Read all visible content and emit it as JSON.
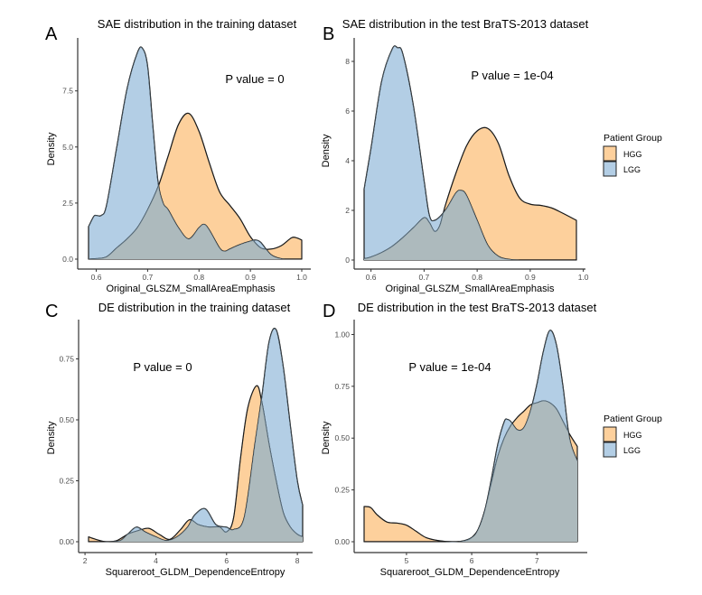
{
  "legend": {
    "title": "Patient Group",
    "items": [
      {
        "label": "HGG",
        "color": "#FDD09C"
      },
      {
        "label": "LGG",
        "color": "#B3CEE5"
      }
    ]
  },
  "colors": {
    "HGG": "#FDD09C",
    "LGG": "#B3CEE5",
    "overlap": "#ADBABD",
    "outline": "#1a1a1a",
    "axis": "#333333"
  },
  "chart_data": [
    {
      "panel": "A",
      "type": "area",
      "title": "SAE distribution in the training dataset",
      "xlabel": "Original_GLSZM_SmallAreaEmphasis",
      "ylabel": "Density",
      "annotation": "P value = 0",
      "xlim": [
        0.585,
        1.0
      ],
      "ylim": [
        0,
        9.5
      ],
      "xticks": [
        0.6,
        0.7,
        0.8,
        0.9,
        1.0
      ],
      "xtick_labels": [
        "0.6",
        "0.7",
        "0.8",
        "0.9",
        "1.0"
      ],
      "yticks": [
        0,
        2.5,
        5.0,
        7.5
      ],
      "ytick_labels": [
        "0.0",
        "2.5",
        "5.0",
        "7.5"
      ],
      "legend": "none",
      "series": [
        {
          "name": "HGG",
          "x": [
            0.585,
            0.6,
            0.62,
            0.64,
            0.66,
            0.68,
            0.7,
            0.72,
            0.74,
            0.76,
            0.78,
            0.8,
            0.82,
            0.84,
            0.86,
            0.88,
            0.9,
            0.92,
            0.94,
            0.96,
            0.98,
            0.99,
            1.0
          ],
          "y": [
            0,
            0.02,
            0.1,
            0.5,
            0.9,
            1.4,
            2.2,
            3.2,
            4.6,
            6.0,
            6.5,
            5.7,
            4.3,
            3.0,
            2.4,
            1.8,
            1.0,
            0.5,
            0.45,
            0.6,
            0.95,
            0.95,
            0.85
          ]
        },
        {
          "name": "LGG",
          "x": [
            0.585,
            0.595,
            0.6,
            0.61,
            0.62,
            0.64,
            0.66,
            0.68,
            0.69,
            0.7,
            0.71,
            0.72,
            0.73,
            0.74,
            0.76,
            0.78,
            0.8,
            0.81,
            0.82,
            0.84,
            0.85,
            0.86,
            0.88,
            0.9,
            0.91,
            0.92,
            0.94,
            0.96,
            0.98,
            1.0
          ],
          "y": [
            1.45,
            1.9,
            1.95,
            1.95,
            2.4,
            5.0,
            7.6,
            9.2,
            9.4,
            8.6,
            6.0,
            3.5,
            2.5,
            2.2,
            1.4,
            0.9,
            1.4,
            1.55,
            1.3,
            0.5,
            0.35,
            0.45,
            0.65,
            0.8,
            0.85,
            0.75,
            0.2,
            0.02,
            0,
            0
          ]
        }
      ]
    },
    {
      "panel": "B",
      "type": "area",
      "title": "SAE distribution in the test BraTS-2013 dataset",
      "xlabel": "Original_GLSZM_SmallAreaEmphasis",
      "ylabel": "Density",
      "annotation": "P value = 1e-04",
      "xlim": [
        0.587,
        0.987
      ],
      "ylim": [
        0,
        8.8
      ],
      "xticks": [
        0.6,
        0.7,
        0.8,
        0.9,
        1.0
      ],
      "xtick_labels": [
        "0.6",
        "0.7",
        "0.8",
        "0.9",
        "1.0"
      ],
      "yticks": [
        0,
        2,
        4,
        6,
        8
      ],
      "ytick_labels": [
        "0",
        "2",
        "4",
        "6",
        "8"
      ],
      "legend": "right",
      "series": [
        {
          "name": "HGG",
          "x": [
            0.587,
            0.6,
            0.62,
            0.64,
            0.66,
            0.68,
            0.7,
            0.71,
            0.72,
            0.73,
            0.74,
            0.76,
            0.78,
            0.8,
            0.82,
            0.84,
            0.86,
            0.88,
            0.9,
            0.92,
            0.94,
            0.96,
            0.987
          ],
          "y": [
            0.05,
            0.12,
            0.3,
            0.55,
            0.9,
            1.3,
            1.7,
            1.5,
            1.15,
            1.4,
            2.2,
            3.5,
            4.6,
            5.2,
            5.3,
            4.7,
            3.4,
            2.5,
            2.25,
            2.2,
            2.1,
            1.9,
            1.6
          ]
        },
        {
          "name": "LGG",
          "x": [
            0.587,
            0.6,
            0.62,
            0.64,
            0.65,
            0.66,
            0.68,
            0.7,
            0.71,
            0.72,
            0.74,
            0.76,
            0.77,
            0.78,
            0.8,
            0.82,
            0.84,
            0.86,
            0.88,
            0.9,
            0.95,
            0.987
          ],
          "y": [
            2.85,
            4.5,
            7.2,
            8.5,
            8.55,
            8.3,
            6.2,
            3.2,
            1.8,
            1.6,
            2.0,
            2.7,
            2.8,
            2.6,
            1.6,
            0.6,
            0.15,
            0.03,
            0,
            0,
            0,
            0
          ]
        }
      ]
    },
    {
      "panel": "C",
      "type": "area",
      "title": "DE distribution in the training dataset",
      "xlabel": "Squareroot_GLDM_DependenceEntropy",
      "ylabel": "Density",
      "annotation": "P value = 0",
      "xlim": [
        2.1,
        8.15
      ],
      "ylim": [
        0,
        0.9
      ],
      "xticks": [
        2,
        4,
        6,
        8
      ],
      "xtick_labels": [
        "2",
        "4",
        "6",
        "8"
      ],
      "yticks": [
        0,
        0.25,
        0.5,
        0.75
      ],
      "ytick_labels": [
        "0.00",
        "0.25",
        "0.50",
        "0.75"
      ],
      "legend": "none",
      "series": [
        {
          "name": "HGG",
          "x": [
            2.1,
            2.3,
            2.6,
            2.9,
            3.2,
            3.5,
            3.8,
            4.1,
            4.4,
            4.7,
            4.95,
            5.2,
            5.5,
            5.8,
            6.0,
            6.2,
            6.4,
            6.6,
            6.85,
            7.0,
            7.2,
            7.4,
            7.6,
            7.8,
            8.0,
            8.15
          ],
          "y": [
            0.02,
            0.01,
            0.0,
            0.005,
            0.03,
            0.045,
            0.055,
            0.03,
            0.01,
            0.05,
            0.09,
            0.07,
            0.06,
            0.06,
            0.04,
            0.1,
            0.35,
            0.55,
            0.64,
            0.57,
            0.4,
            0.25,
            0.12,
            0.06,
            0.03,
            0.02
          ]
        },
        {
          "name": "LGG",
          "x": [
            2.1,
            2.4,
            2.7,
            3.0,
            3.2,
            3.45,
            3.7,
            4.0,
            4.3,
            4.6,
            4.9,
            5.1,
            5.4,
            5.7,
            6.0,
            6.2,
            6.5,
            6.8,
            7.0,
            7.2,
            7.4,
            7.6,
            7.8,
            8.0,
            8.15
          ],
          "y": [
            0,
            0,
            0.0,
            0.005,
            0.03,
            0.06,
            0.04,
            0.02,
            0.005,
            0.02,
            0.06,
            0.11,
            0.135,
            0.07,
            0.06,
            0.05,
            0.1,
            0.4,
            0.6,
            0.82,
            0.87,
            0.72,
            0.48,
            0.25,
            0.15
          ]
        }
      ]
    },
    {
      "panel": "D",
      "type": "area",
      "title": "DE distribution in the test BraTS-2013 dataset",
      "xlabel": "Squareroot_GLDM_DependenceEntropy",
      "ylabel": "Density",
      "annotation": "P value = 1e-04",
      "xlim": [
        4.35,
        7.62
      ],
      "ylim": [
        0,
        1.05
      ],
      "xticks": [
        5,
        6,
        7
      ],
      "xtick_labels": [
        "5",
        "6",
        "7"
      ],
      "yticks": [
        0,
        0.25,
        0.5,
        0.75,
        1.0
      ],
      "ytick_labels": [
        "0.00",
        "0.25",
        "0.50",
        "0.75",
        "1.00"
      ],
      "legend": "right",
      "series": [
        {
          "name": "HGG",
          "x": [
            4.35,
            4.45,
            4.55,
            4.7,
            4.85,
            5.0,
            5.15,
            5.3,
            5.5,
            5.7,
            5.9,
            6.0,
            6.1,
            6.2,
            6.3,
            6.4,
            6.5,
            6.6,
            6.7,
            6.8,
            6.9,
            7.0,
            7.1,
            7.2,
            7.3,
            7.4,
            7.5,
            7.62
          ],
          "y": [
            0.17,
            0.165,
            0.13,
            0.095,
            0.09,
            0.08,
            0.05,
            0.02,
            0.005,
            0.0,
            0.005,
            0.02,
            0.06,
            0.15,
            0.28,
            0.41,
            0.5,
            0.56,
            0.6,
            0.63,
            0.66,
            0.67,
            0.68,
            0.67,
            0.64,
            0.58,
            0.52,
            0.46
          ]
        },
        {
          "name": "LGG",
          "x": [
            4.35,
            5.0,
            5.5,
            5.8,
            6.0,
            6.1,
            6.2,
            6.3,
            6.4,
            6.5,
            6.55,
            6.6,
            6.7,
            6.8,
            6.9,
            7.0,
            7.1,
            7.2,
            7.3,
            7.4,
            7.5,
            7.62
          ],
          "y": [
            0,
            0,
            0,
            0.0,
            0.02,
            0.06,
            0.15,
            0.3,
            0.47,
            0.58,
            0.59,
            0.58,
            0.54,
            0.55,
            0.63,
            0.76,
            0.92,
            1.02,
            0.95,
            0.75,
            0.5,
            0.39
          ]
        }
      ]
    }
  ]
}
